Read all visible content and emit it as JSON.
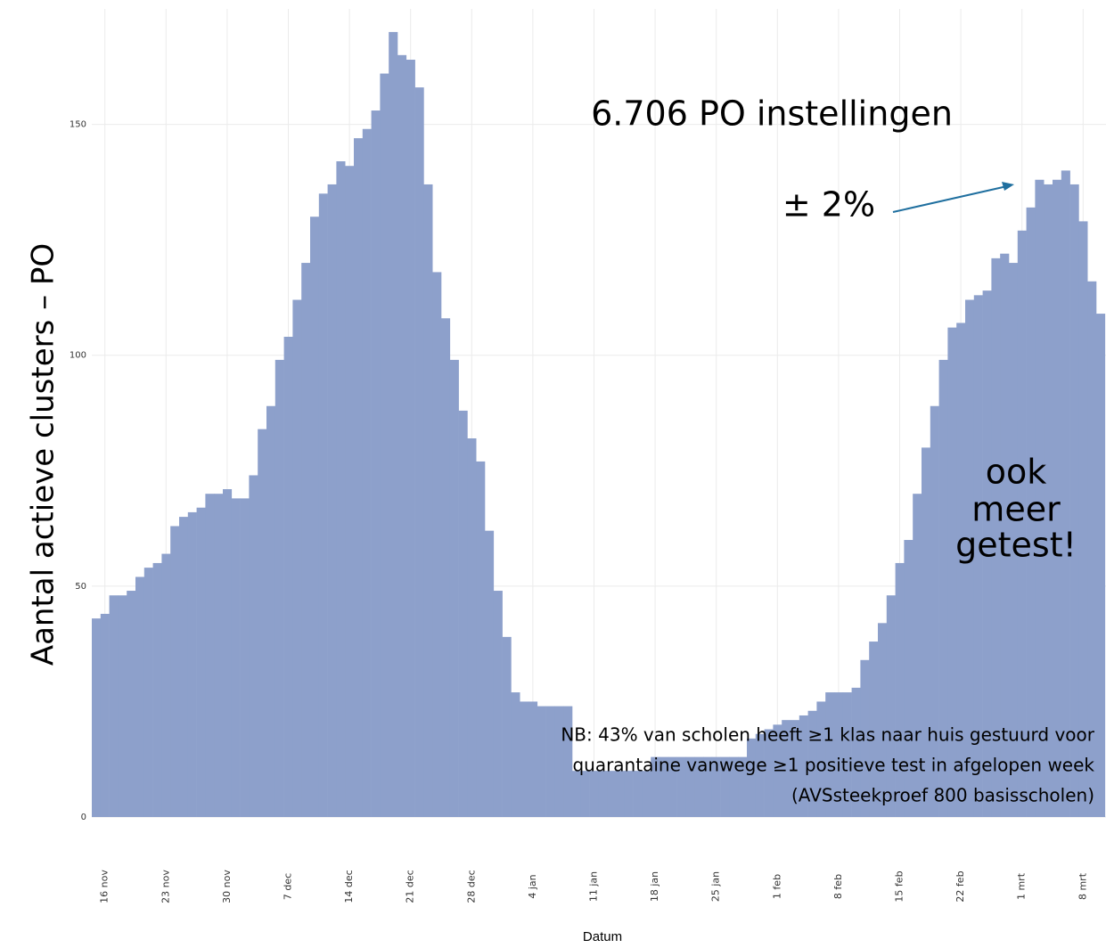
{
  "chart_data": {
    "type": "bar",
    "y_label": "Aantal actieve clusters – PO",
    "x_label": "Datum",
    "color": "#8da0cb",
    "grid": true,
    "ylim": [
      0,
      175
    ],
    "yticks": [
      0,
      50,
      100,
      150
    ],
    "categories": [
      null,
      "16 nov",
      null,
      null,
      null,
      null,
      null,
      null,
      "23 nov",
      null,
      null,
      null,
      null,
      null,
      null,
      "30 nov",
      null,
      null,
      null,
      null,
      null,
      null,
      "7 dec",
      null,
      null,
      null,
      null,
      null,
      null,
      "14 dec",
      null,
      null,
      null,
      null,
      null,
      null,
      "21 dec",
      null,
      null,
      null,
      null,
      null,
      null,
      "28 dec",
      null,
      null,
      null,
      null,
      null,
      null,
      "4 jan",
      null,
      null,
      null,
      null,
      null,
      null,
      "11 jan",
      null,
      null,
      null,
      null,
      null,
      null,
      "18 jan",
      null,
      null,
      null,
      null,
      null,
      null,
      "25 jan",
      null,
      null,
      null,
      null,
      null,
      null,
      "1 feb",
      null,
      null,
      null,
      null,
      null,
      null,
      "8 feb",
      null,
      null,
      null,
      null,
      null,
      null,
      "15 feb",
      null,
      null,
      null,
      null,
      null,
      null,
      "22 feb",
      null,
      null,
      null,
      null,
      null,
      null,
      "1 mrt",
      null,
      null,
      null,
      null,
      null,
      null,
      "8 mrt",
      null,
      null
    ],
    "values": [
      43,
      44,
      48,
      48,
      49,
      52,
      54,
      55,
      57,
      63,
      65,
      66,
      67,
      70,
      70,
      71,
      69,
      69,
      74,
      84,
      89,
      99,
      104,
      112,
      120,
      130,
      135,
      137,
      142,
      141,
      147,
      149,
      153,
      161,
      170,
      165,
      164,
      158,
      137,
      118,
      108,
      99,
      88,
      82,
      77,
      62,
      49,
      39,
      27,
      25,
      25,
      24,
      24,
      24,
      24,
      10,
      10,
      10,
      10,
      10,
      10,
      10,
      10,
      10,
      13,
      13,
      13,
      13,
      13,
      13,
      13,
      13,
      13,
      13,
      13,
      17,
      18,
      19,
      20,
      21,
      21,
      22,
      23,
      25,
      27,
      27,
      27,
      28,
      34,
      38,
      42,
      48,
      55,
      60,
      70,
      80,
      89,
      99,
      106,
      107,
      112,
      113,
      114,
      121,
      122,
      120,
      127,
      132,
      138,
      137,
      138,
      140,
      137,
      129,
      116,
      109
    ],
    "annotations": [
      "6.706 PO instellingen",
      "± 2%",
      "ook",
      "meer",
      "getest!",
      "NB: 43% van scholen heeft ≥1 klas naar huis gestuurd voor",
      "quarantaine vanwege ≥1 positieve test in afgelopen week",
      "(AVSsteekproef 800 basisscholen)"
    ]
  }
}
